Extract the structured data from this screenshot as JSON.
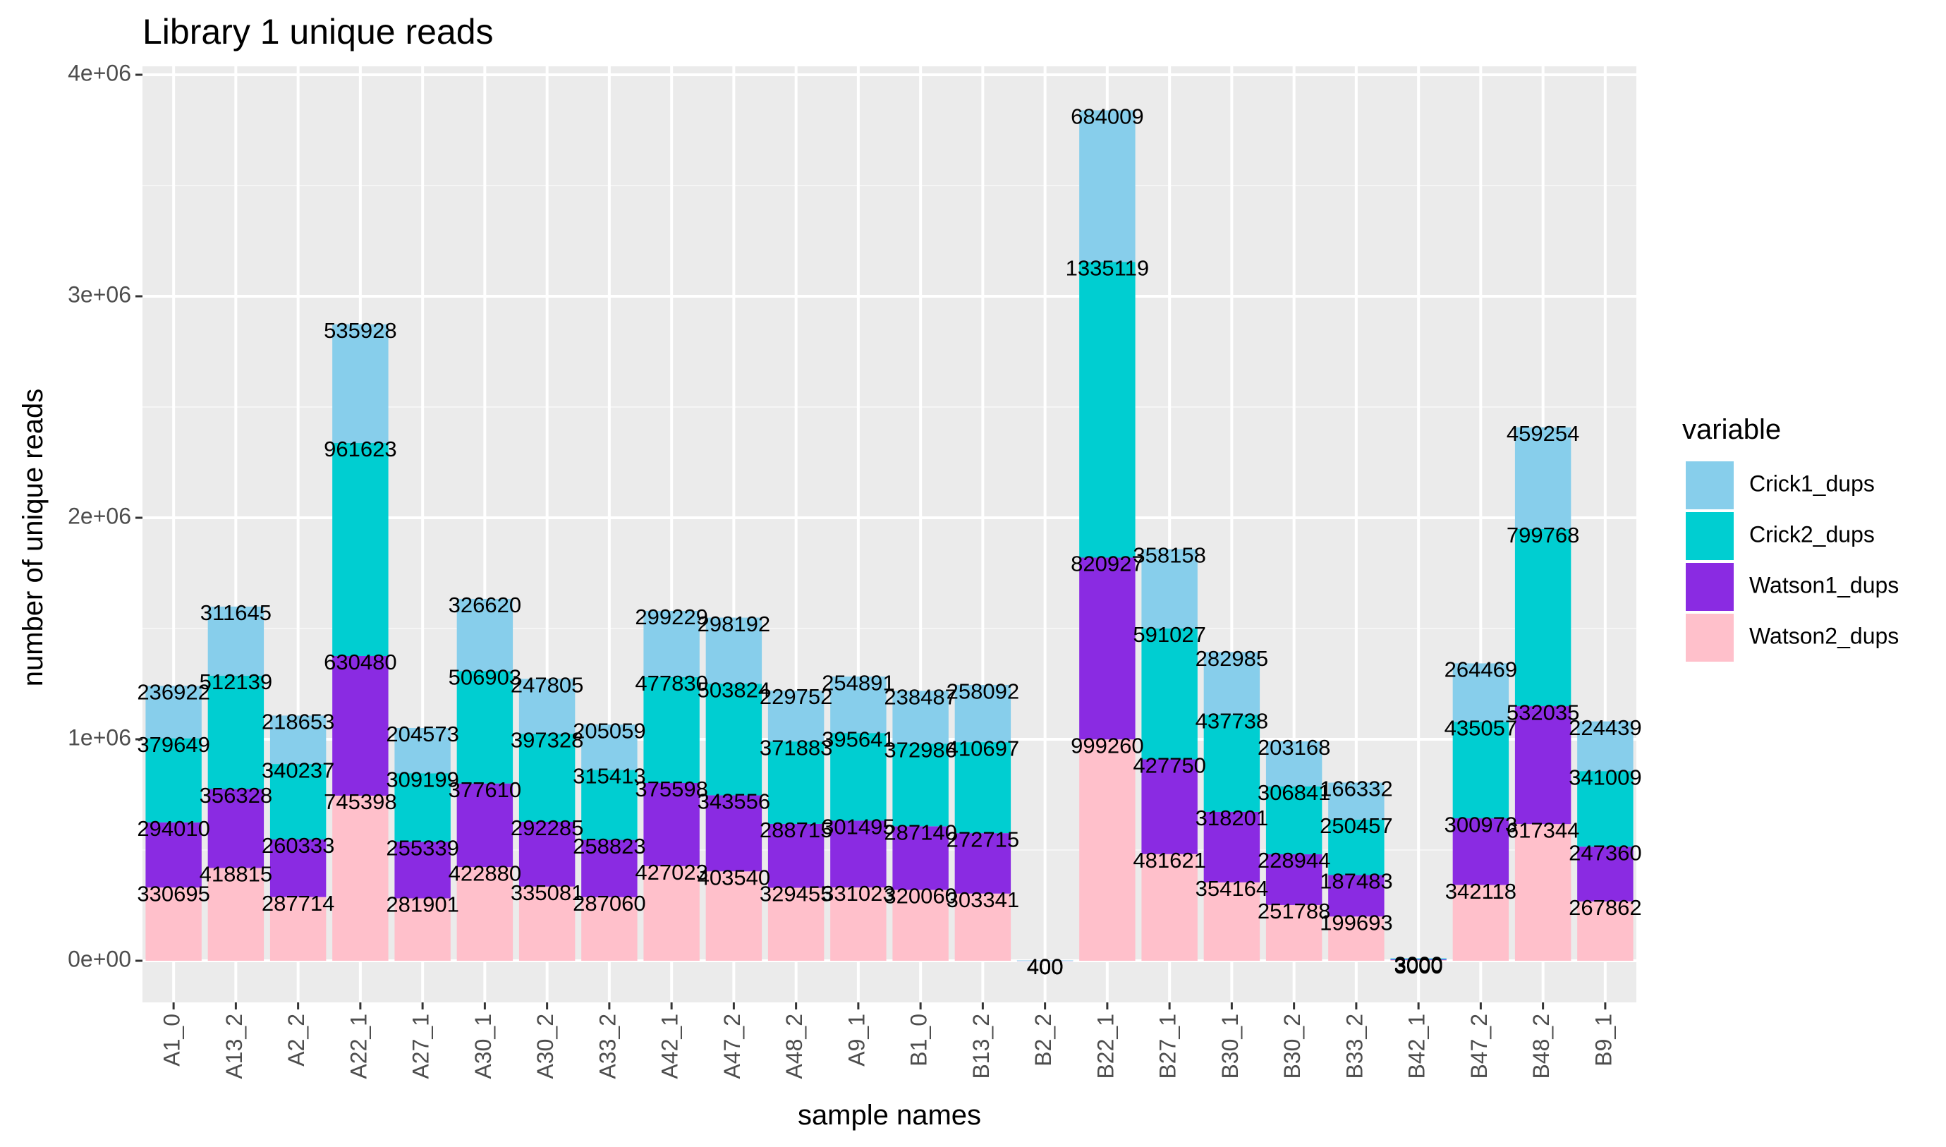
{
  "chart_data": {
    "type": "bar",
    "stacked": true,
    "title": "Library 1 unique reads",
    "xlabel": "sample names",
    "ylabel": "number of unique reads",
    "ylim": [
      -200000,
      4100000
    ],
    "yticks": [
      0,
      1000000,
      2000000,
      3000000,
      4000000
    ],
    "ytick_labels": [
      "0e+00",
      "1e+06",
      "2e+06",
      "3e+06",
      "4e+06"
    ],
    "grid": true,
    "legend": {
      "title": "variable",
      "position": "right"
    },
    "categories": [
      "A1_0",
      "A13_2",
      "A2_2",
      "A22_1",
      "A27_1",
      "A30_1",
      "A30_2",
      "A33_2",
      "A42_1",
      "A47_2",
      "A48_2",
      "A9_1",
      "B1_0",
      "B13_2",
      "B2_2",
      "B22_1",
      "B27_1",
      "B30_1",
      "B30_2",
      "B33_2",
      "B42_1",
      "B47_2",
      "B48_2",
      "B9_1"
    ],
    "series": [
      {
        "name": "Watson2_dups",
        "color": "#FFC0CB",
        "values": [
          330695,
          418815,
          287714,
          745398,
          281901,
          422880,
          335081,
          287060,
          427023,
          403540,
          329455,
          331023,
          320060,
          303341,
          400,
          999260,
          481621,
          354164,
          251788,
          199693,
          3000,
          342118,
          617344,
          267862
        ]
      },
      {
        "name": "Watson1_dups",
        "color": "#8A2BE2",
        "values": [
          294010,
          356328,
          260333,
          630480,
          255339,
          377610,
          292285,
          258823,
          375598,
          343556,
          288715,
          301495,
          287140,
          272715,
          400,
          820927,
          427750,
          318201,
          228944,
          187483,
          3000,
          300973,
          532035,
          247360
        ]
      },
      {
        "name": "Crick2_dups",
        "color": "#00CED1",
        "values": [
          379649,
          512139,
          340237,
          961623,
          309199,
          506903,
          397328,
          315413,
          477830,
          503824,
          371883,
          395641,
          372986,
          410697,
          400,
          1335119,
          591027,
          437738,
          306841,
          250457,
          3000,
          435057,
          799768,
          341009
        ]
      },
      {
        "name": "Crick1_dups",
        "color": "#87CEEB",
        "values": [
          236922,
          311645,
          218653,
          535928,
          204573,
          326620,
          247805,
          205059,
          299229,
          298192,
          229752,
          254891,
          238487,
          258092,
          400,
          684009,
          358158,
          282985,
          203168,
          166332,
          3000,
          264469,
          459254,
          224439
        ]
      }
    ],
    "legend_order": [
      "Crick1_dups",
      "Crick2_dups",
      "Watson1_dups",
      "Watson2_dups"
    ]
  }
}
